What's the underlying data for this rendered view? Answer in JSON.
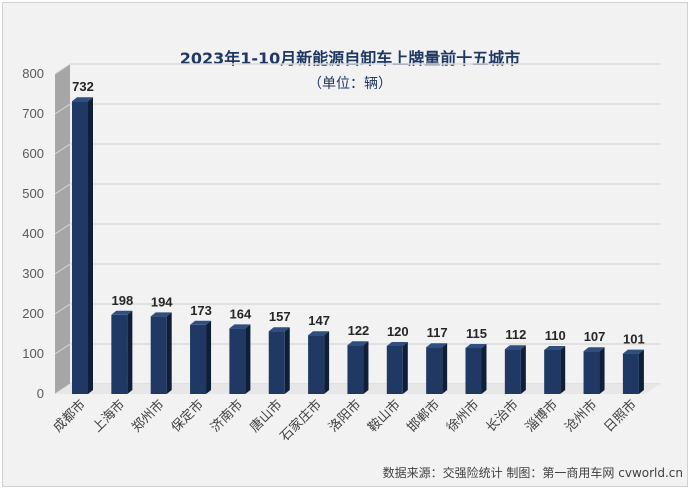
{
  "chart_data": {
    "type": "bar",
    "title": "2023年1-10月新能源自卸车上牌量前十五城市",
    "subtitle": "（单位：辆）",
    "categories": [
      "成都市",
      "上海市",
      "郑州市",
      "保定市",
      "济南市",
      "唐山市",
      "石家庄市",
      "洛阳市",
      "鞍山市",
      "邯郸市",
      "徐州市",
      "长治市",
      "淄博市",
      "沧州市",
      "日照市"
    ],
    "values": [
      732,
      198,
      194,
      173,
      164,
      157,
      147,
      122,
      120,
      117,
      115,
      112,
      110,
      107,
      101
    ],
    "ylim": [
      0,
      800
    ],
    "yticks": [
      0,
      100,
      200,
      300,
      400,
      500,
      600,
      700,
      800
    ],
    "grid": true,
    "xlabel": "",
    "ylabel": "",
    "bar_color": "#1f3864",
    "source": "数据来源：交强险统计 制图：第一商用车网 cvworld.cn"
  }
}
